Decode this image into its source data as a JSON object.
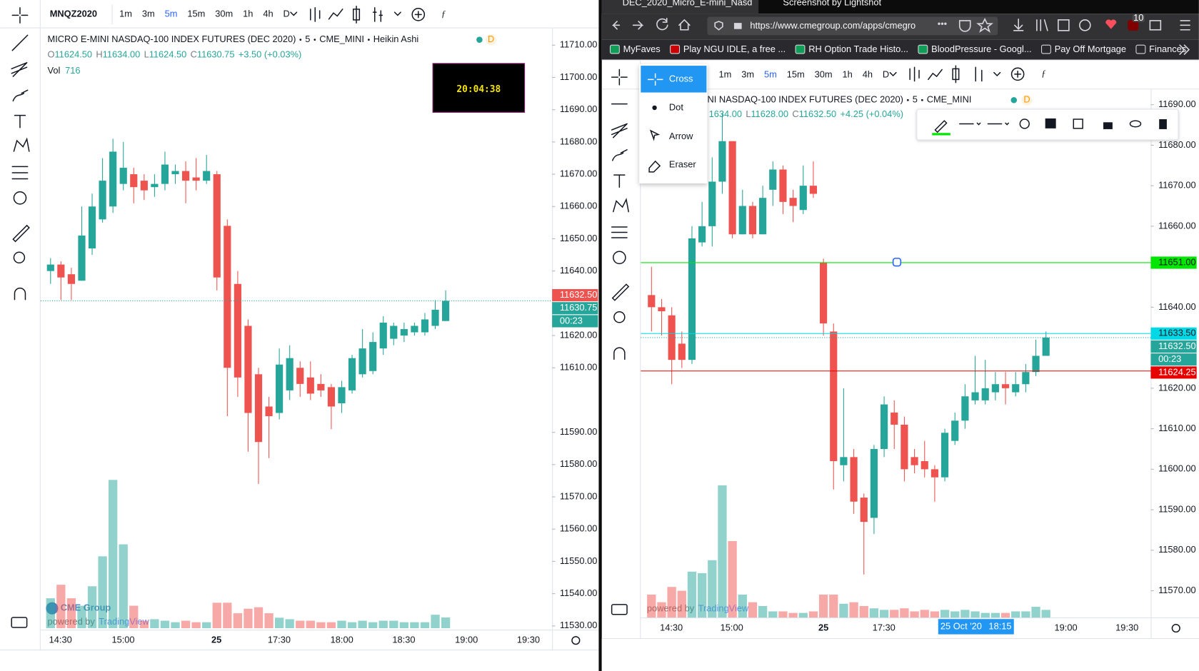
{
  "left": {
    "symbol": "MNQZ2020",
    "intervals": [
      "1m",
      "3m",
      "5m",
      "15m",
      "30m",
      "1h",
      "4h",
      "D"
    ],
    "legend": {
      "title": "MICRO E-MINI NASDAQ-100 INDEX FUTURES (DEC 2020)",
      "interval": "5",
      "exchange": "CME_MINI",
      "style": "Heikin Ashi",
      "badge": "D",
      "ohlc_keys": [
        "O",
        "H",
        "L",
        "C"
      ],
      "ohlc_values": [
        "11624.50",
        "11634.00",
        "11624.50",
        "11630.75"
      ],
      "change": "+3.50 (+0.03%)",
      "volume_label": "Vol",
      "volume_value": 716
    },
    "clock": "20:04:38",
    "watermark": {
      "brand": "CME Group",
      "powered": "powered by",
      "tv": "TradingView"
    },
    "chart": {
      "type": "candlestick",
      "up_color": "#26a69a",
      "down_color": "#ef5350",
      "ylim": [
        11530,
        11715
      ],
      "yticks": [
        {
          "value": 11710,
          "label": "11710.00"
        },
        {
          "value": 11700,
          "label": "11700.00"
        },
        {
          "value": 11690,
          "label": "11690.00"
        },
        {
          "value": 11680,
          "label": "11680.00"
        },
        {
          "value": 11670,
          "label": "11670.00"
        },
        {
          "value": 11660,
          "label": "11660.00"
        },
        {
          "value": 11650,
          "label": "11650.00"
        },
        {
          "value": 11640,
          "label": "11640.00"
        },
        {
          "value": 11620,
          "label": "11620.00"
        },
        {
          "value": 11610,
          "label": "11610.00"
        },
        {
          "value": 11590,
          "label": "11590.00"
        },
        {
          "value": 11580,
          "label": "11580.00"
        },
        {
          "value": 11570,
          "label": "11570.00"
        },
        {
          "value": 11560,
          "label": "11560.00"
        },
        {
          "value": 11550,
          "label": "11550.00"
        },
        {
          "value": 11540,
          "label": "11540.00"
        },
        {
          "value": 11530,
          "label": "11530.00"
        }
      ],
      "xtick_labels": [
        "14:30",
        "15:00",
        "25",
        "17:30",
        "18:00",
        "18:30",
        "19:00",
        "19:30"
      ],
      "open": [
        11640,
        11642,
        11639,
        11637,
        11647,
        11656,
        11660,
        11667,
        11670,
        11668,
        11666,
        11667,
        11670,
        11671,
        11669,
        11668,
        11670,
        11654,
        11636,
        11623,
        11608,
        11598,
        11596,
        11603,
        11610,
        11607,
        11605,
        11604,
        11599,
        11603,
        11608,
        11609,
        11616,
        11619,
        11620,
        11621,
        11621,
        11623,
        11624.5
      ],
      "high": [
        11644,
        11643,
        11641,
        11660,
        11664,
        11675,
        11681,
        11680,
        11672,
        11670,
        11670,
        11677,
        11673,
        11674,
        11675,
        11676,
        11671,
        11656,
        11640,
        11625,
        11610,
        11601,
        11616,
        11617,
        11612,
        11612,
        11608,
        11605,
        11606,
        11614,
        11622,
        11621,
        11626,
        11624,
        11624,
        11624,
        11627,
        11631,
        11634
      ],
      "low": [
        11636,
        11631,
        11631,
        11637,
        11645,
        11655,
        11658,
        11665,
        11661,
        11662,
        11663,
        11665,
        11667,
        11661,
        11665,
        11667,
        11634,
        11595,
        11601,
        11584,
        11574,
        11582,
        11594,
        11600,
        11601,
        11600,
        11601,
        11591,
        11596,
        11602,
        11607,
        11608,
        11614,
        11617,
        11618,
        11620,
        11620,
        11622,
        11624.5
      ],
      "close": [
        11642,
        11638,
        11636,
        11651,
        11660,
        11668,
        11677,
        11672,
        11666,
        11665,
        11667,
        11673,
        11671,
        11668,
        11668,
        11671,
        11638,
        11610,
        11607,
        11596,
        11587,
        11595,
        11611,
        11613,
        11605,
        11602,
        11603,
        11598,
        11604,
        11613,
        11616,
        11618,
        11624,
        11623,
        11622,
        11623,
        11625,
        11628,
        11630.75
      ],
      "volume": [
        2000,
        2900,
        2000,
        1500,
        2800,
        4800,
        9900,
        5600,
        1500,
        500,
        600,
        500,
        400,
        500,
        400,
        400,
        1700,
        1700,
        1000,
        1300,
        1400,
        1000,
        700,
        600,
        500,
        500,
        400,
        400,
        500,
        400,
        500,
        400,
        500,
        500,
        400,
        400,
        400,
        900,
        716
      ],
      "price_lines": {
        "values": [
          11632.5,
          11630.75
        ],
        "value_labels": [
          "11632.50",
          "11630.75"
        ],
        "colors": [
          "#ef5350",
          "#26a69a"
        ],
        "line_styles": [
          "none",
          "dotted"
        ]
      },
      "countdown": "00:23"
    }
  },
  "right": {
    "tabs": [
      "DEC_2020_Micro_E-mini_Nasd",
      "Screenshot by Lightshot"
    ],
    "url": "https://www.cmegroup.com/apps/cmegro",
    "addon_badge": "10",
    "bookmarks": [
      "MyFaves",
      "Play NGU IDLE, a free ...",
      "RH Option Trade Histo...",
      "BloodPressure - Googl...",
      "Pay Off Mortgage",
      "Finances"
    ],
    "intervals": [
      "1m",
      "3m",
      "5m",
      "15m",
      "30m",
      "1h",
      "4h",
      "D"
    ],
    "tool_menu": [
      "Cross",
      "Dot",
      "Arrow",
      "Eraser"
    ],
    "legend": {
      "title": "NI NASDAQ-100 INDEX FUTURES (DEC 2020)",
      "interval": "5",
      "exchange": "CME_MINI",
      "badge": "D",
      "partial": "1634.00",
      "ohlc_keys": [
        "L",
        "C"
      ],
      "ohlc_values": [
        "11628.00",
        "11632.50"
      ],
      "change": "+4.25 (+0.04%)"
    },
    "watermark": {
      "powered": "powered by",
      "tv": "TradingView"
    },
    "crosshair": {
      "date": "25 Oct '20",
      "time": "18:15"
    },
    "chart": {
      "type": "candlestick",
      "up_color": "#26a69a",
      "down_color": "#ef5350",
      "ylim": [
        11565,
        11694
      ],
      "yticks": [
        {
          "value": 11690,
          "label": "11690.00"
        },
        {
          "value": 11680,
          "label": "11680.00"
        },
        {
          "value": 11670,
          "label": "11670.00"
        },
        {
          "value": 11660,
          "label": "11660.00"
        },
        {
          "value": 11640,
          "label": "11640.00"
        },
        {
          "value": 11620,
          "label": "11620.00"
        },
        {
          "value": 11610,
          "label": "11610.00"
        },
        {
          "value": 11600,
          "label": "11600.00"
        },
        {
          "value": 11590,
          "label": "11590.00"
        },
        {
          "value": 11580,
          "label": "11580.00"
        },
        {
          "value": 11570,
          "label": "11570.00"
        }
      ],
      "xtick_labels": [
        "14:30",
        "15:00",
        "25",
        "17:30",
        "19:00",
        "19:30"
      ],
      "open": [
        11643,
        11640,
        11638,
        11631,
        11627,
        11656,
        11660,
        11671,
        11681,
        11658,
        11665,
        11658,
        11669,
        11674,
        11667,
        11664,
        11670,
        11651,
        11634,
        11601,
        11603,
        11593,
        11588,
        11605,
        11614,
        11611,
        11603,
        11602,
        11600,
        11598,
        11607,
        11612,
        11617,
        11617,
        11619,
        11621,
        11619,
        11621,
        11624,
        11628
      ],
      "high": [
        11650,
        11642,
        11640,
        11634,
        11660,
        11666,
        11677,
        11688,
        11681,
        11669,
        11666,
        11670,
        11676,
        11675,
        11669,
        11675,
        11676,
        11652,
        11636,
        11620,
        11605,
        11594,
        11606,
        11618,
        11617,
        11613,
        11605,
        11607,
        11601,
        11610,
        11614,
        11621,
        11628,
        11627,
        11624,
        11624,
        11624,
        11626,
        11632,
        11634
      ],
      "low": [
        11634,
        11633,
        11621,
        11625,
        11626,
        11655,
        11655,
        11668,
        11657,
        11658,
        11657,
        11658,
        11665,
        11663,
        11661,
        11663,
        11667,
        11633,
        11595,
        11597,
        11589,
        11574,
        11584,
        11603,
        11605,
        11597,
        11599,
        11598,
        11592,
        11597,
        11606,
        11610,
        11616,
        11616,
        11617,
        11616,
        11618,
        11619,
        11623,
        11628
      ],
      "close": [
        11640,
        11639,
        11627,
        11627,
        11657,
        11660,
        11671,
        11681,
        11658,
        11665,
        11658,
        11667,
        11674,
        11666,
        11665,
        11670,
        11668,
        11636,
        11602,
        11603,
        11592,
        11587,
        11605,
        11616,
        11611,
        11600,
        11601,
        11600,
        11598,
        11609,
        11612,
        11618,
        11619,
        11620,
        11621,
        11620,
        11621,
        11624,
        11628,
        11632.5
      ],
      "volume": [
        1500,
        1000,
        2000,
        1750,
        3000,
        2900,
        3750,
        8650,
        5000,
        1500,
        1000,
        750,
        400,
        400,
        300,
        300,
        400,
        1500,
        1500,
        900,
        1000,
        750,
        600,
        500,
        500,
        600,
        400,
        500,
        400,
        500,
        400,
        500,
        400,
        300,
        300,
        300,
        400,
        400,
        700,
        500
      ],
      "price_lines": {
        "values": [
          11651,
          11633.5,
          11632.5,
          11624.25
        ],
        "value_labels": [
          "11651.00",
          "11633.50",
          "11632.50",
          "11624.25"
        ],
        "colors": [
          "#00e600",
          "#00d8e6",
          "#26a69a",
          "#e60000"
        ],
        "line_styles": [
          "solid",
          "solid",
          "dotted",
          "solid"
        ]
      },
      "countdown": "00:23"
    }
  }
}
